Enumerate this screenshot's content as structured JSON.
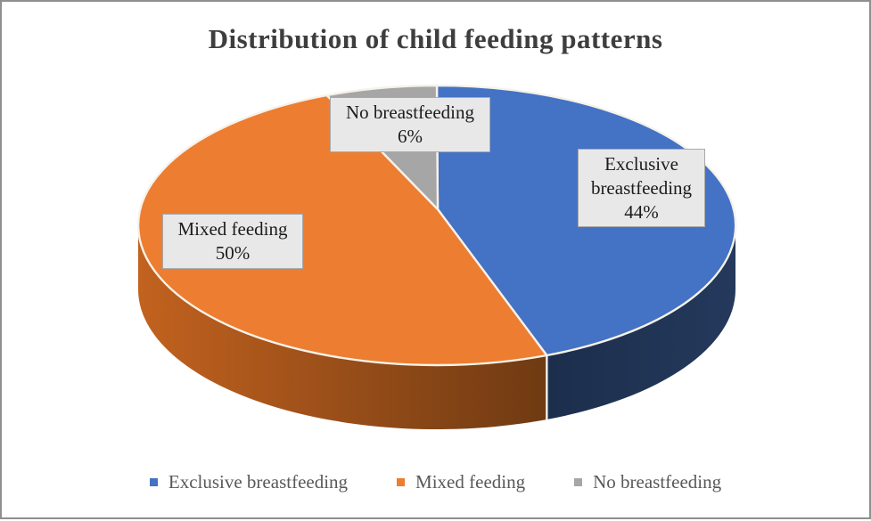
{
  "title": "Distribution of child feeding patterns",
  "chart_data": {
    "type": "pie",
    "style": "3d-pie",
    "title": "Distribution of child feeding patterns",
    "categories": [
      "Exclusive breastfeeding",
      "Mixed feeding",
      "No breastfeeding"
    ],
    "values": [
      44,
      50,
      6
    ],
    "unit": "%",
    "colors": [
      "#4472C4",
      "#ED7D31",
      "#A6A6A6"
    ],
    "wall_colors": [
      [
        "#24395C",
        "#1C2E4C"
      ],
      [
        "#6F3A12",
        "#C2621F"
      ],
      null
    ],
    "separator_color": "#F6F2E9",
    "start_angle_deg": 0,
    "direction": "clockwise",
    "legend_position": "bottom",
    "data_labels": [
      {
        "category": "Exclusive breastfeeding",
        "value": "44%"
      },
      {
        "category": "Mixed feeding",
        "value": "50%"
      },
      {
        "category": "No breastfeeding",
        "value": "6%"
      }
    ]
  },
  "callouts": {
    "no_breastfeeding": {
      "text": "No breastfeeding",
      "value": "6%"
    },
    "exclusive_breastfeeding": {
      "text": "Exclusive breastfeeding",
      "value": "44%"
    },
    "mixed_feeding": {
      "text": "Mixed feeding",
      "value": "50%"
    }
  },
  "legend": {
    "items": [
      {
        "label": "Exclusive breastfeeding",
        "color": "#4472C4"
      },
      {
        "label": "Mixed feeding",
        "color": "#ED7D31"
      },
      {
        "label": "No breastfeeding",
        "color": "#A6A6A6"
      }
    ]
  }
}
